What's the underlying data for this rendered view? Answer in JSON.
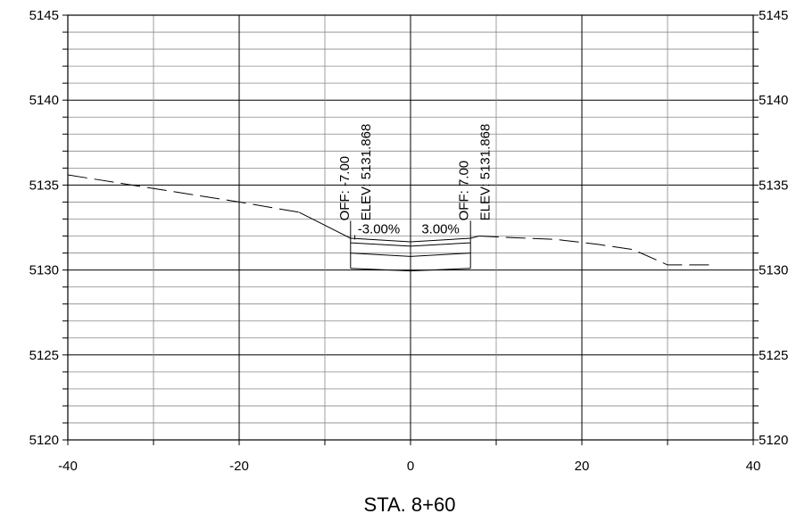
{
  "chart_data": {
    "type": "line",
    "title": "STA. 8+60",
    "xlabel": "",
    "ylabel": "",
    "xlim": [
      -40,
      40
    ],
    "ylim": [
      5120,
      5145
    ],
    "grid": true,
    "x_ticks": [
      "-40",
      "-20",
      "0",
      "20",
      "40"
    ],
    "y_ticks_left": [
      "5145",
      "5140",
      "5135",
      "5130",
      "5125",
      "5120"
    ],
    "y_ticks_right": [
      "5145",
      "5140",
      "5135",
      "5130",
      "5125",
      "5120"
    ],
    "series": [
      {
        "style": "dashed",
        "points": [
          [
            -40,
            5135.6
          ],
          [
            -30,
            5134.8
          ],
          [
            -20,
            5134.0
          ],
          [
            -13,
            5133.4
          ]
        ]
      },
      {
        "style": "dashed",
        "points": [
          [
            8,
            5132.0
          ],
          [
            12,
            5131.9
          ],
          [
            17,
            5131.8
          ],
          [
            22,
            5131.5
          ],
          [
            26,
            5131.2
          ],
          [
            30,
            5130.3
          ],
          [
            35,
            5130.3
          ]
        ]
      },
      {
        "style": "solid",
        "points": [
          [
            -13,
            5133.4
          ],
          [
            -7,
            5131.868
          ]
        ]
      },
      {
        "style": "solid",
        "points": [
          [
            -7,
            5131.868
          ],
          [
            0,
            5131.658
          ],
          [
            7,
            5131.868
          ],
          [
            8,
            5132.0
          ]
        ]
      }
    ],
    "template_layers": [
      [
        [
          -7,
          5131.6
        ],
        [
          0,
          5131.4
        ],
        [
          7,
          5131.6
        ]
      ],
      [
        [
          -7,
          5131.0
        ],
        [
          0,
          5130.8
        ],
        [
          7,
          5131.0
        ]
      ],
      [
        [
          -7,
          5130.1
        ],
        [
          0,
          5129.95
        ],
        [
          7,
          5130.1
        ]
      ]
    ],
    "template_box": {
      "x_left": -7,
      "x_right": 7,
      "y_top": 5132.9,
      "y_bottom": 5130.1
    },
    "annotations": {
      "left_off": "OFF: -7.00",
      "left_elev": "ELEV: 5131.868",
      "right_off": "OFF: 7.00",
      "right_elev": "ELEV: 5131.868",
      "left_slope": "-3.00%",
      "right_slope": "3.00%"
    }
  }
}
